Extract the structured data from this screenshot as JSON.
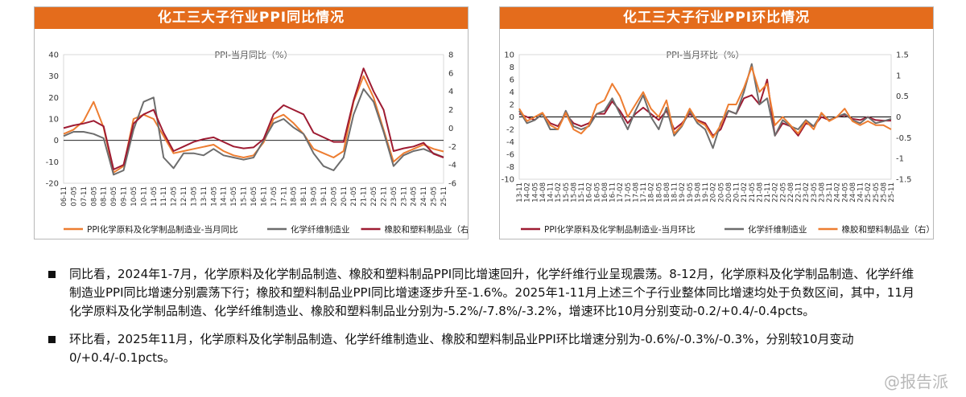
{
  "bullets": [
    "同比看，2024年1-7月，化学原料及化学制品制造、橡胶和塑料制品PPI同比增速回升，化学纤维行业呈现震荡。8-12月，化学原料及化学制品制造、化学纤维制造业PPI同比增速分别震荡下行；橡胶和塑料制品业PPI同比增速逐步升至-1.6%。2025年1-11月上述三个子行业整体同比增速均处于负数区间，其中，11月化学原料及化学制品制造、化学纤维制造业、橡胶和塑料制品业分别为-5.2%/-7.8%/-3.2%，增速环比10月分别变动-0.2/+0.4/-0.4pcts。",
    "环比看，2025年11月，化学原料及化学制品制造、化学纤维制造业、橡胶和塑料制品业PPI环比增速分别为-0.6%/-0.3%/-0.3%，分别较10月变动0/+0.4/-0.1pcts。"
  ],
  "watermark": "@报告派",
  "colors": {
    "orange": "#ed7d31",
    "gray": "#6d6d6d",
    "maroon": "#9e1b32",
    "header": "#e46c1c"
  },
  "chart_data": [
    {
      "type": "line",
      "title": "化工三大子行业PPI同比情况",
      "subtitle": "PPI-当月同比（%）",
      "x_ticks": [
        "06-11",
        "07-05",
        "07-11",
        "08-05",
        "08-11",
        "09-05",
        "09-11",
        "10-05",
        "10-11",
        "11-05",
        "11-11",
        "12-05",
        "12-11",
        "13-05",
        "13-11",
        "14-05",
        "14-11",
        "15-05",
        "15-11",
        "16-05",
        "16-11",
        "17-05",
        "17-11",
        "18-05",
        "18-11",
        "19-05",
        "19-11",
        "20-05",
        "20-11",
        "21-05",
        "21-11",
        "22-05",
        "22-11",
        "23-05",
        "23-11",
        "24-05",
        "24-11",
        "25-05",
        "25-11"
      ],
      "ylim_left": [
        -20,
        40
      ],
      "yticks_left": [
        40,
        30,
        20,
        10,
        0,
        -10,
        -20
      ],
      "ylim_right": [
        -6,
        8
      ],
      "yticks_right": [
        8,
        6,
        4,
        2,
        0,
        -2,
        -4,
        -6
      ],
      "series": [
        {
          "name": "PPI化学原料及化学制品制造业-当月同比",
          "color": "#ed7d31",
          "axis": "left",
          "values": [
            3,
            5,
            9,
            18,
            6,
            -15,
            -12,
            10,
            12,
            10,
            2,
            -6,
            -5,
            -4,
            -3,
            -2,
            -5,
            -7,
            -8,
            -7,
            -1,
            10,
            12,
            8,
            3,
            -4,
            -6,
            -8,
            -5,
            18,
            30,
            20,
            5,
            -10,
            -6,
            -4,
            -2,
            -4,
            -5.2
          ]
        },
        {
          "name": "化学纤维制造业",
          "color": "#6d6d6d",
          "axis": "left",
          "values": [
            2,
            4,
            4,
            3,
            1,
            -16,
            -14,
            5,
            18,
            20,
            -8,
            -13,
            -6,
            -6,
            -7,
            -4,
            -7,
            -8,
            -9,
            -8,
            0,
            8,
            10,
            6,
            3,
            -6,
            -12,
            -14,
            -8,
            12,
            24,
            18,
            4,
            -12,
            -7,
            -5,
            -4,
            -6,
            -7.8
          ]
        },
        {
          "name": "橡胶和塑料制品业（右）",
          "color": "#9e1b32",
          "axis": "right",
          "values": [
            0,
            0.3,
            0.5,
            0.8,
            0.2,
            -4.5,
            -4,
            0.5,
            1.5,
            2,
            -0.5,
            -2.5,
            -2,
            -1.5,
            -1.2,
            -1,
            -1.5,
            -2,
            -2.2,
            -2.1,
            -1.2,
            1.5,
            2.5,
            2,
            1.5,
            -0.5,
            -1,
            -1.5,
            -1.5,
            3,
            6.5,
            4,
            2,
            -2.5,
            -2.2,
            -2,
            -1.6,
            -2.8,
            -3.2
          ]
        }
      ]
    },
    {
      "type": "line",
      "title": "化工三大子行业PPI环比情况",
      "subtitle": "PPI-当月环比（%）",
      "x_ticks": [
        "13-11",
        "14-02",
        "14-05",
        "14-08",
        "14-11",
        "15-02",
        "15-05",
        "15-08",
        "15-11",
        "16-02",
        "16-05",
        "16-08",
        "16-11",
        "17-02",
        "17-05",
        "17-08",
        "17-11",
        "18-02",
        "18-05",
        "18-08",
        "18-11",
        "19-02",
        "19-05",
        "19-08",
        "19-11",
        "20-02",
        "20-05",
        "20-08",
        "20-11",
        "21-02",
        "21-05",
        "21-08",
        "21-11",
        "22-02",
        "22-05",
        "22-08",
        "22-11",
        "23-02",
        "23-05",
        "23-08",
        "23-11",
        "24-02",
        "24-05",
        "24-08",
        "24-11",
        "25-02",
        "25-05",
        "25-08",
        "25-11"
      ],
      "ylim_left": [
        -10,
        10
      ],
      "yticks_left": [
        10,
        8,
        6,
        4,
        2,
        0,
        -2,
        -4,
        -6,
        -8,
        -10
      ],
      "ylim_right": [
        -1.5,
        1.5
      ],
      "yticks_right": [
        1.5,
        1,
        0.5,
        0,
        -0.5,
        -1,
        -1.5
      ],
      "series": [
        {
          "name": "PPI化学原料及化学制品制造业-当月环比",
          "color": "#9e1b32",
          "axis": "left",
          "values": [
            0.5,
            0,
            -0.5,
            0.5,
            -1,
            -1.5,
            0.5,
            -1,
            -1.5,
            -1,
            0.5,
            0.5,
            2.5,
            1,
            -1,
            0.5,
            1.5,
            0.5,
            -0.5,
            1,
            -2,
            -1,
            0.5,
            -0.5,
            -1,
            -3,
            -2,
            1,
            0.5,
            3,
            3.5,
            2,
            6,
            -3,
            -1,
            -1.5,
            -3,
            -1,
            -1.5,
            0,
            -0.5,
            0,
            0.3,
            -0.3,
            -0.5,
            0,
            -0.5,
            -0.6,
            -0.6
          ]
        },
        {
          "name": "化学纤维制造业",
          "color": "#6d6d6d",
          "axis": "left",
          "values": [
            1,
            -1,
            -0.5,
            0.5,
            -2,
            -2,
            1,
            -1.5,
            -2,
            -1.5,
            0.5,
            1,
            3,
            0.5,
            -2,
            1,
            3.5,
            0,
            -2,
            1.5,
            -3,
            -1.5,
            1,
            -1,
            -2,
            -5,
            -1,
            1,
            0.5,
            4,
            8.5,
            2,
            3,
            -3,
            -0.5,
            -1.5,
            -2,
            -0.5,
            -1.5,
            0.5,
            -0.5,
            0,
            0.5,
            -0.5,
            -1,
            0,
            -1,
            -0.7,
            -0.3
          ]
        },
        {
          "name": "橡胶和塑料制品业（右）",
          "color": "#ed7d31",
          "axis": "right",
          "values": [
            0.2,
            -0.1,
            0,
            0.1,
            -0.2,
            -0.3,
            0.1,
            -0.3,
            -0.4,
            -0.2,
            0.3,
            0.4,
            0.8,
            0.5,
            0,
            0.3,
            0.6,
            0.2,
            0,
            0.4,
            -0.4,
            -0.2,
            0.2,
            -0.1,
            -0.2,
            -0.5,
            -0.2,
            0.3,
            0.3,
            0.7,
            1.2,
            0.6,
            0.8,
            -0.2,
            0,
            -0.2,
            -0.4,
            -0.1,
            -0.3,
            0.1,
            -0.1,
            0,
            0.2,
            -0.1,
            -0.2,
            -0.1,
            -0.2,
            -0.2,
            -0.3
          ]
        }
      ]
    }
  ]
}
